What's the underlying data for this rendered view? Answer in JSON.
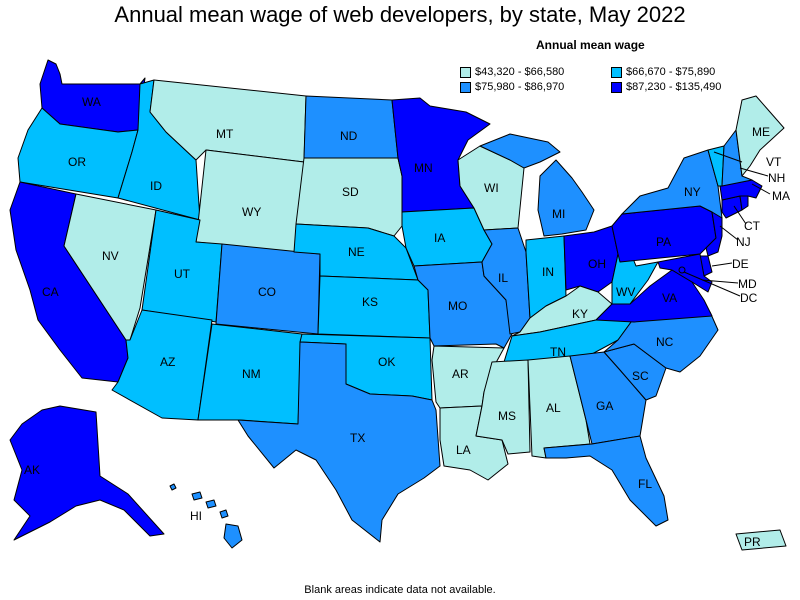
{
  "title": "Annual mean wage of web developers, by state, May 2022",
  "legend": {
    "title": "Annual mean wage",
    "items": [
      {
        "label": "$43,320 - $66,580",
        "color": "#b1ede9"
      },
      {
        "label": "$66,670 - $75,890",
        "color": "#00bfff"
      },
      {
        "label": "$75,980 - $86,970",
        "color": "#1e90ff"
      },
      {
        "label": "$87,230 - $135,490",
        "color": "#0000ff"
      }
    ]
  },
  "footnote": "Blank areas indicate data not available.",
  "states": {
    "WA": "$87,230 - $135,490",
    "OR": "$66,670 - $75,890",
    "CA": "$87,230 - $135,490",
    "ID": "$66,670 - $75,890",
    "NV": "$43,320 - $66,580",
    "MT": "$43,320 - $66,580",
    "WY": "$43,320 - $66,580",
    "UT": "$66,670 - $75,890",
    "AZ": "$66,670 - $75,890",
    "CO": "$75,980 - $86,970",
    "NM": "$66,670 - $75,890",
    "ND": "$75,980 - $86,970",
    "SD": "$43,320 - $66,580",
    "NE": "$66,670 - $75,890",
    "KS": "$66,670 - $75,890",
    "OK": "$66,670 - $75,890",
    "TX": "$75,980 - $86,970",
    "MN": "$87,230 - $135,490",
    "IA": "$66,670 - $75,890",
    "MO": "$75,980 - $86,970",
    "AR": "$43,320 - $66,580",
    "LA": "$43,320 - $66,580",
    "WI": "$43,320 - $66,580",
    "IL": "$75,980 - $86,970",
    "MI": "$75,980 - $86,970",
    "IN": "$66,670 - $75,890",
    "OH": "$87,230 - $135,490",
    "KY": "$43,320 - $66,580",
    "TN": "$66,670 - $75,890",
    "MS": "$43,320 - $66,580",
    "AL": "$43,320 - $66,580",
    "GA": "$75,980 - $86,970",
    "FL": "$75,980 - $86,970",
    "SC": "$75,980 - $86,970",
    "NC": "$75,980 - $86,970",
    "VA": "$87,230 - $135,490",
    "WV": "$66,670 - $75,890",
    "PA": "$87,230 - $135,490",
    "NY": "$75,980 - $86,970",
    "NJ": "$87,230 - $135,490",
    "DE": "$87,230 - $135,490",
    "MD": "$87,230 - $135,490",
    "DC": "$87,230 - $135,490",
    "CT": "$87,230 - $135,490",
    "MA": "$87,230 - $135,490",
    "VT": "$66,670 - $75,890",
    "NH": "$75,980 - $86,970",
    "ME": "$43,320 - $66,580",
    "RI": "$87,230 - $135,490",
    "AK": "$87,230 - $135,490",
    "HI": "$75,980 - $86,970",
    "PR": "$43,320 - $66,580"
  }
}
